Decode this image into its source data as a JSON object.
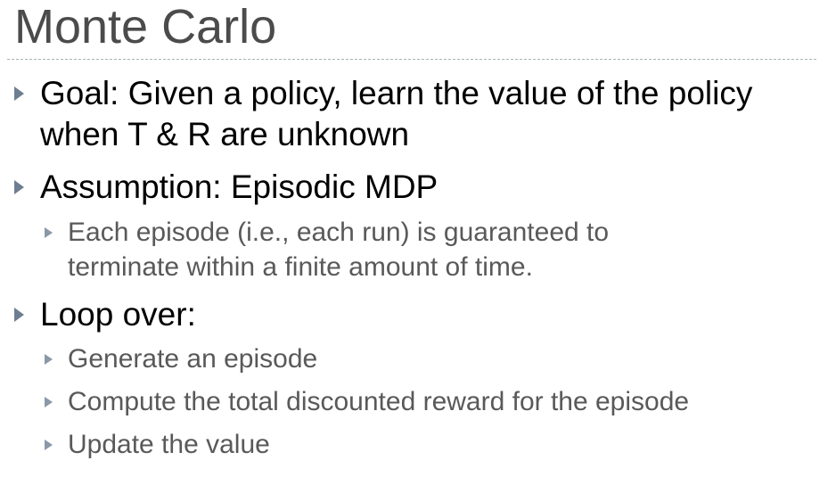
{
  "slide": {
    "title": "Monte Carlo",
    "bullets": [
      {
        "lines": [
          "Goal: Given a policy, learn the value of the policy",
          "when T & R are unknown"
        ]
      },
      {
        "lines": [
          "Assumption: Episodic MDP"
        ],
        "sub": [
          {
            "lines": [
              "Each episode (i.e., each run) is guaranteed to",
              "terminate within a finite amount of time."
            ]
          }
        ]
      },
      {
        "lines": [
          "Loop over:"
        ],
        "sub": [
          {
            "lines": [
              "Generate an episode"
            ]
          },
          {
            "lines": [
              "Compute the total discounted reward for the episode"
            ]
          },
          {
            "lines": [
              "Update the value"
            ]
          }
        ]
      }
    ]
  }
}
